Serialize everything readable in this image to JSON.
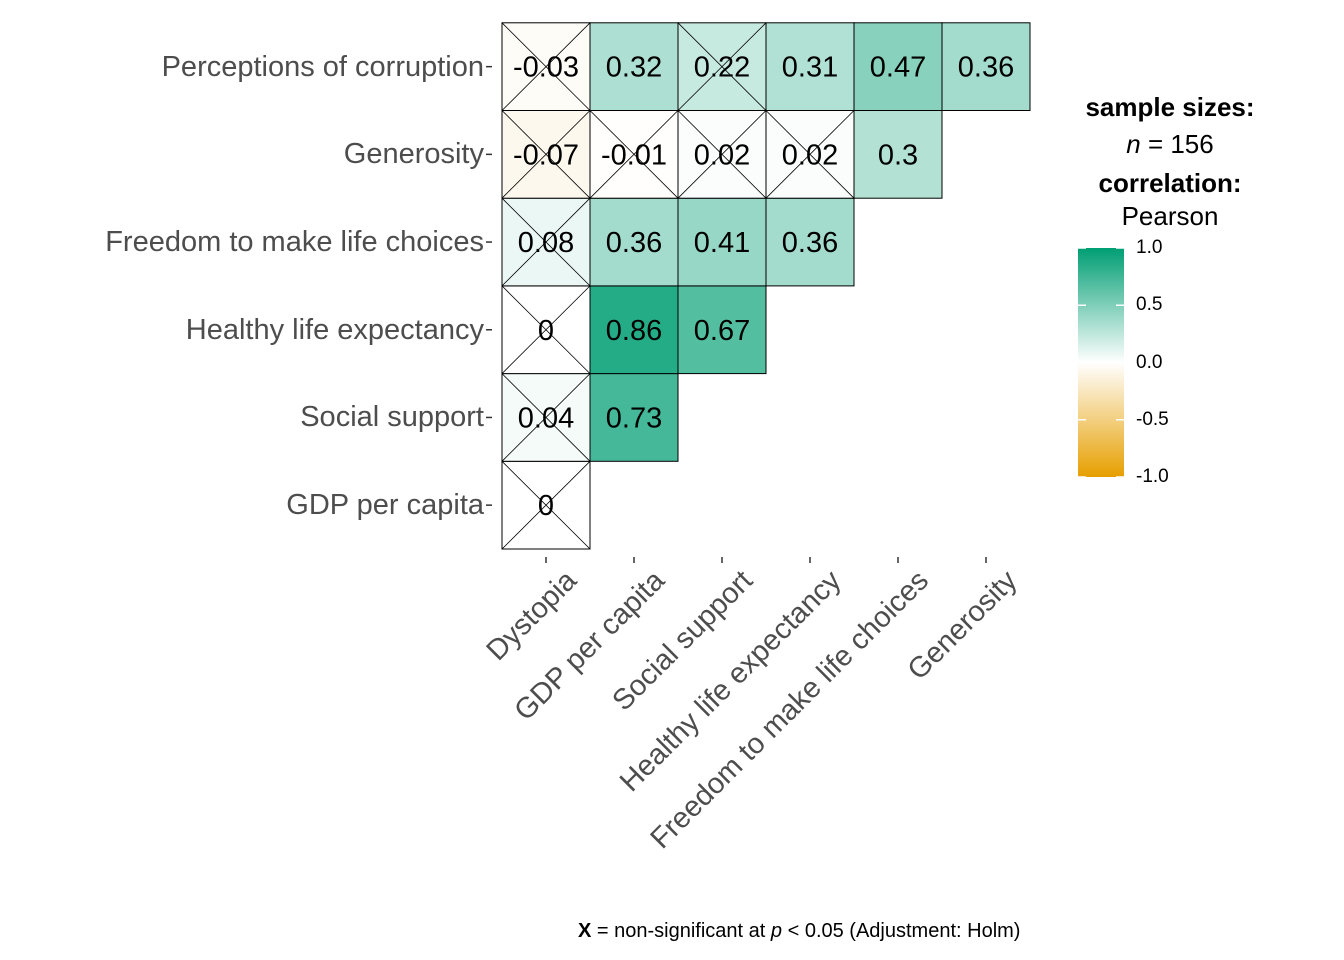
{
  "chart_data": {
    "type": "heatmap",
    "subtype": "correlation-matrix-lower-triangle",
    "x_categories": [
      "Dystopia",
      "GDP per capita",
      "Social support",
      "Healthy life expectancy",
      "Freedom to make life choices",
      "Generosity"
    ],
    "y_categories": [
      "GDP per capita",
      "Social support",
      "Healthy life expectancy",
      "Freedom to make life choices",
      "Generosity",
      "Perceptions of corruption"
    ],
    "cells": [
      {
        "x": "Dystopia",
        "y": "GDP per capita",
        "label": "0",
        "value": 0.0,
        "non_significant": true
      },
      {
        "x": "Dystopia",
        "y": "Social support",
        "label": "0.04",
        "value": 0.04,
        "non_significant": true
      },
      {
        "x": "GDP per capita",
        "y": "Social support",
        "label": "0.73",
        "value": 0.73,
        "non_significant": false
      },
      {
        "x": "Dystopia",
        "y": "Healthy life expectancy",
        "label": "0",
        "value": 0.0,
        "non_significant": true
      },
      {
        "x": "GDP per capita",
        "y": "Healthy life expectancy",
        "label": "0.86",
        "value": 0.86,
        "non_significant": false
      },
      {
        "x": "Social support",
        "y": "Healthy life expectancy",
        "label": "0.67",
        "value": 0.67,
        "non_significant": false
      },
      {
        "x": "Dystopia",
        "y": "Freedom to make life choices",
        "label": "0.08",
        "value": 0.08,
        "non_significant": true
      },
      {
        "x": "GDP per capita",
        "y": "Freedom to make life choices",
        "label": "0.36",
        "value": 0.36,
        "non_significant": false
      },
      {
        "x": "Social support",
        "y": "Freedom to make life choices",
        "label": "0.41",
        "value": 0.41,
        "non_significant": false
      },
      {
        "x": "Healthy life expectancy",
        "y": "Freedom to make life choices",
        "label": "0.36",
        "value": 0.36,
        "non_significant": false
      },
      {
        "x": "Dystopia",
        "y": "Generosity",
        "label": "-0.07",
        "value": -0.07,
        "non_significant": true
      },
      {
        "x": "GDP per capita",
        "y": "Generosity",
        "label": "-0.01",
        "value": -0.01,
        "non_significant": true
      },
      {
        "x": "Social support",
        "y": "Generosity",
        "label": "0.02",
        "value": 0.02,
        "non_significant": true
      },
      {
        "x": "Healthy life expectancy",
        "y": "Generosity",
        "label": "0.02",
        "value": 0.02,
        "non_significant": true
      },
      {
        "x": "Freedom to make life choices",
        "y": "Generosity",
        "label": "0.3",
        "value": 0.3,
        "non_significant": false
      },
      {
        "x": "Dystopia",
        "y": "Perceptions of corruption",
        "label": "-0.03",
        "value": -0.03,
        "non_significant": true
      },
      {
        "x": "GDP per capita",
        "y": "Perceptions of corruption",
        "label": "0.32",
        "value": 0.32,
        "non_significant": false
      },
      {
        "x": "Social support",
        "y": "Perceptions of corruption",
        "label": "0.22",
        "value": 0.22,
        "non_significant": true
      },
      {
        "x": "Healthy life expectancy",
        "y": "Perceptions of corruption",
        "label": "0.31",
        "value": 0.31,
        "non_significant": false
      },
      {
        "x": "Freedom to make life choices",
        "y": "Perceptions of corruption",
        "label": "0.47",
        "value": 0.47,
        "non_significant": false
      },
      {
        "x": "Generosity",
        "y": "Perceptions of corruption",
        "label": "0.36",
        "value": 0.36,
        "non_significant": false
      }
    ],
    "color_scale": {
      "low": "#E69F00",
      "mid": "#FFFFFF",
      "high": "#009E73",
      "limits": [
        -1.0,
        1.0
      ],
      "tick_labels": [
        "1.0",
        "0.5",
        "0.0",
        "-0.5",
        "-1.0"
      ],
      "tick_values": [
        1.0,
        0.5,
        0.0,
        -0.5,
        -1.0
      ]
    },
    "legend": {
      "sample_sizes_title": "sample sizes:",
      "n_symbol": "n",
      "n_text": " = 156",
      "correlation_title": "correlation:",
      "correlation_method": "Pearson",
      "placement": "right"
    },
    "caption": {
      "symbol": "X",
      "text1": " = non-significant at ",
      "p_symbol": "p",
      "text2": " < 0.05 (Adjustment: Holm)"
    }
  }
}
